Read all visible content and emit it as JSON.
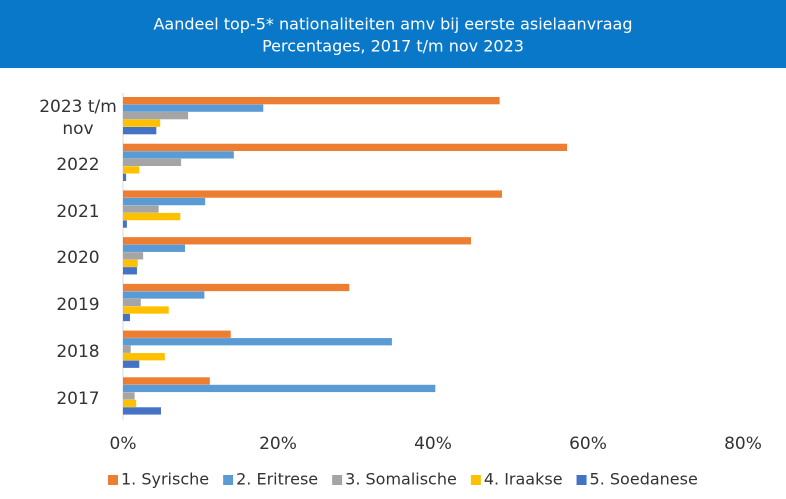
{
  "chart_data": {
    "type": "hbar",
    "title": "Aandeel top-5* nationaliteiten amv bij eerste asielaanvraag",
    "subtitle": "Percentages, 2017 t/m nov 2023",
    "categories": [
      "2023 t/m nov",
      "2022",
      "2021",
      "2020",
      "2019",
      "2018",
      "2017"
    ],
    "series": [
      {
        "name": "1. Syrische",
        "color": "#ed7d31",
        "values": [
          48.6,
          57.3,
          48.9,
          44.9,
          29.2,
          13.9,
          11.2
        ]
      },
      {
        "name": "2. Eritrese",
        "color": "#5b9bd5",
        "values": [
          18.1,
          14.3,
          10.6,
          8.0,
          10.5,
          34.7,
          40.3
        ]
      },
      {
        "name": "3. Somalische",
        "color": "#a5a5a5",
        "values": [
          8.4,
          7.5,
          4.6,
          2.6,
          2.3,
          1.0,
          1.5
        ]
      },
      {
        "name": "4. Iraakse",
        "color": "#ffc000",
        "values": [
          4.8,
          2.1,
          7.4,
          1.9,
          5.9,
          5.4,
          1.7
        ]
      },
      {
        "name": "5. Soedanese",
        "color": "#4472c4",
        "values": [
          4.3,
          0.4,
          0.5,
          1.8,
          0.9,
          2.1,
          4.9
        ]
      }
    ],
    "xlim": [
      0,
      80
    ],
    "xticks": [
      {
        "value": 0,
        "label": "0%"
      },
      {
        "value": 20,
        "label": "20%"
      },
      {
        "value": 40,
        "label": "40%"
      },
      {
        "value": 60,
        "label": "60%"
      },
      {
        "value": 80,
        "label": "80%"
      }
    ],
    "grid": false,
    "legend": "bottom"
  }
}
